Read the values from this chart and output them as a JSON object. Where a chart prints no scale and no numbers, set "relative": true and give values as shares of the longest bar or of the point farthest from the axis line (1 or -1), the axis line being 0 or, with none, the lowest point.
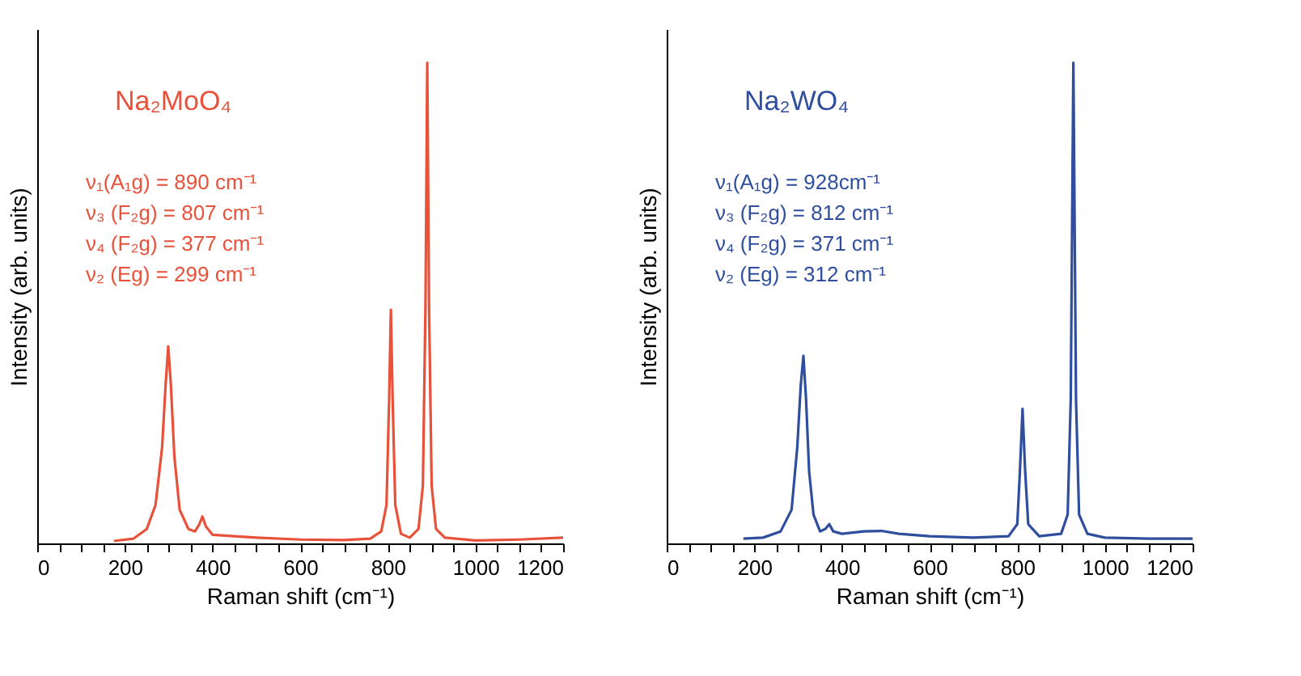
{
  "chart_data": [
    {
      "type": "line",
      "relative": true,
      "xlabel": "Raman shift (cm⁻¹)",
      "ylabel": "Intensity (arb. units)",
      "xlim": [
        0,
        1200
      ],
      "xticks": [
        0,
        {
          "value": 50,
          "label": null
        },
        {
          "value": 100,
          "label": null
        },
        {
          "value": 150,
          "label": null
        },
        200,
        {
          "value": 250,
          "label": null
        },
        {
          "value": 300,
          "label": null
        },
        {
          "value": 350,
          "label": null
        },
        400,
        {
          "value": 450,
          "label": null
        },
        {
          "value": 500,
          "label": null
        },
        {
          "value": 550,
          "label": null
        },
        600,
        {
          "value": 650,
          "label": null
        },
        {
          "value": 700,
          "label": null
        },
        {
          "value": 750,
          "label": null
        },
        800,
        {
          "value": 850,
          "label": null
        },
        {
          "value": 900,
          "label": null
        },
        {
          "value": 950,
          "label": null
        },
        1000,
        {
          "value": 1050,
          "label": null
        },
        {
          "value": 1100,
          "label": null
        },
        {
          "value": 1150,
          "label": null
        },
        1200
      ],
      "tick_labels": "x",
      "grid": false,
      "annotations": [
        "ν₁(A₁g) = 890 cm⁻¹",
        "ν₃ (F₂g) = 807 cm⁻¹",
        "ν₄ (F₂g) = 377 cm⁻¹",
        "ν₂ (Eg) = 299 cm⁻¹"
      ],
      "series": [
        {
          "name": "Na₂MoO₄",
          "color": "#e8513a",
          "x": [
            175,
            220,
            250,
            270,
            285,
            293,
            299,
            305,
            313,
            325,
            345,
            360,
            370,
            377,
            385,
            400,
            450,
            500,
            600,
            700,
            760,
            785,
            797,
            803,
            807,
            811,
            817,
            830,
            850,
            870,
            880,
            886,
            890,
            894,
            900,
            910,
            930,
            1000,
            1100,
            1200
          ],
          "values": [
            0.005,
            0.01,
            0.03,
            0.08,
            0.2,
            0.33,
            0.41,
            0.33,
            0.18,
            0.07,
            0.03,
            0.025,
            0.04,
            0.056,
            0.035,
            0.018,
            0.015,
            0.012,
            0.008,
            0.007,
            0.01,
            0.025,
            0.08,
            0.3,
            0.486,
            0.3,
            0.08,
            0.02,
            0.012,
            0.03,
            0.12,
            0.5,
            1.0,
            0.5,
            0.12,
            0.03,
            0.012,
            0.006,
            0.008,
            0.012
          ]
        }
      ]
    },
    {
      "type": "line",
      "relative": true,
      "xlabel": "Raman shift (cm⁻¹)",
      "ylabel": "Intensity (arb. units)",
      "xlim": [
        0,
        1200
      ],
      "xticks": [
        0,
        {
          "value": 50,
          "label": null
        },
        {
          "value": 100,
          "label": null
        },
        {
          "value": 150,
          "label": null
        },
        200,
        {
          "value": 250,
          "label": null
        },
        {
          "value": 300,
          "label": null
        },
        {
          "value": 350,
          "label": null
        },
        400,
        {
          "value": 450,
          "label": null
        },
        {
          "value": 500,
          "label": null
        },
        {
          "value": 550,
          "label": null
        },
        600,
        {
          "value": 650,
          "label": null
        },
        {
          "value": 700,
          "label": null
        },
        {
          "value": 750,
          "label": null
        },
        800,
        {
          "value": 850,
          "label": null
        },
        {
          "value": 900,
          "label": null
        },
        {
          "value": 950,
          "label": null
        },
        1000,
        {
          "value": 1050,
          "label": null
        },
        {
          "value": 1100,
          "label": null
        },
        {
          "value": 1150,
          "label": null
        },
        1200
      ],
      "tick_labels": "x",
      "grid": false,
      "annotations": [
        "ν₁(A₁g) = 928cm⁻¹",
        "ν₃ (F₂g) = 812 cm⁻¹",
        "ν₄ (F₂g) = 371 cm⁻¹",
        "ν₂ (Eg) = 312 cm⁻¹"
      ],
      "series": [
        {
          "name": "Na₂WO₄",
          "color": "#2f4e9e",
          "x": [
            175,
            220,
            260,
            285,
            298,
            306,
            312,
            318,
            325,
            335,
            350,
            362,
            371,
            380,
            400,
            450,
            490,
            530,
            600,
            700,
            780,
            800,
            806,
            812,
            818,
            825,
            850,
            900,
            915,
            922,
            928,
            934,
            941,
            960,
            1000,
            1100,
            1200
          ],
          "values": [
            0.01,
            0.012,
            0.025,
            0.07,
            0.2,
            0.33,
            0.39,
            0.3,
            0.15,
            0.06,
            0.025,
            0.03,
            0.04,
            0.025,
            0.02,
            0.025,
            0.026,
            0.02,
            0.015,
            0.012,
            0.015,
            0.04,
            0.15,
            0.28,
            0.15,
            0.04,
            0.015,
            0.02,
            0.06,
            0.3,
            1.0,
            0.3,
            0.06,
            0.02,
            0.012,
            0.01,
            0.01
          ]
        }
      ]
    }
  ]
}
